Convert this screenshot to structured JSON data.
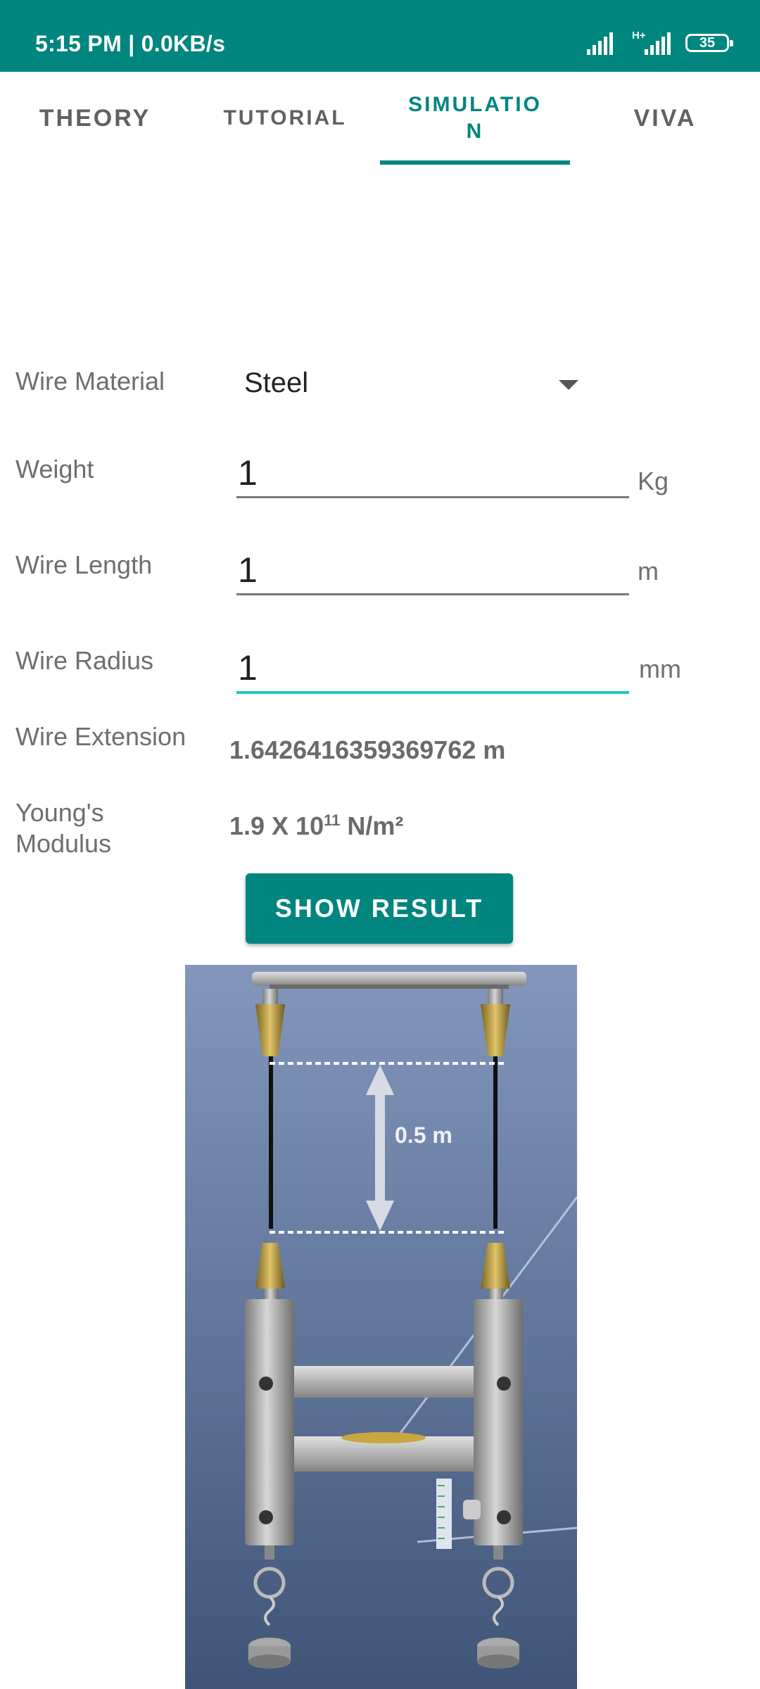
{
  "status_bar": {
    "time_speed": "5:15 PM | 0.0KB/s",
    "network_label": "H+",
    "battery": "35"
  },
  "tabs": [
    {
      "label": "THEORY",
      "active": false
    },
    {
      "label": "TUTORIAL",
      "active": false
    },
    {
      "label": "SIMULATIO\nN",
      "active": true
    },
    {
      "label": "VIVA",
      "active": false
    }
  ],
  "form": {
    "wire_material": {
      "label": "Wire Material",
      "value": "Steel"
    },
    "weight": {
      "label": "Weight",
      "value": "1",
      "unit": "Kg"
    },
    "wire_length": {
      "label": "Wire Length",
      "value": "1",
      "unit": "m"
    },
    "wire_radius": {
      "label": "Wire Radius",
      "value": "1",
      "unit": "mm"
    },
    "wire_extension": {
      "label": "Wire Extension",
      "value": "1.6426416359369762 m"
    },
    "youngs_modulus": {
      "label": "Young's\nModulus",
      "value_prefix": "1.9 X 10",
      "value_exp": "11",
      "value_suffix": " N/m²"
    }
  },
  "show_result_label": "SHOW RESULT",
  "apparatus": {
    "distance_label": "0.5 m"
  },
  "colors": {
    "primary": "#00857f",
    "accent": "#1fc8c0"
  }
}
